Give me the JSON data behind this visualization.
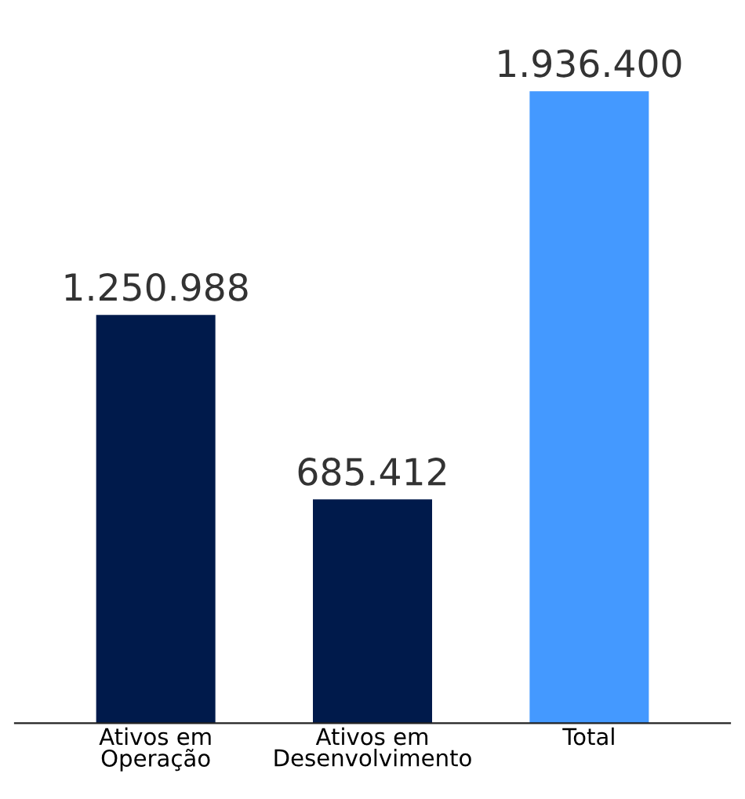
{
  "chart_data": {
    "type": "bar",
    "categories": [
      "Ativos em\nOperação",
      "Ativos em\nDesenvolvimento",
      "Total"
    ],
    "values": [
      1250988,
      685412,
      1936400
    ],
    "colors": [
      "#001a4b",
      "#001a4b",
      "#4499ff"
    ],
    "value_labels": [
      "1.250.988",
      "685.412",
      "1.936.400"
    ],
    "grid": false,
    "legend": false
  }
}
